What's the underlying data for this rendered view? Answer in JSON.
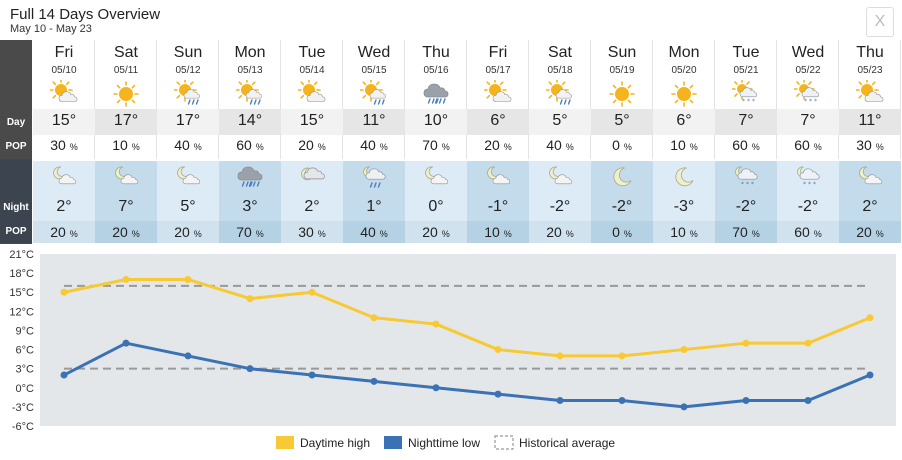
{
  "header": {
    "title": "Full 14 Days Overview",
    "subtitle": "May 10 - May 23",
    "close_label": "X"
  },
  "row_labels": {
    "day": "Day",
    "pop": "POP",
    "night": "Night",
    "pop_night": "POP"
  },
  "pop_unit": "%",
  "days": [
    {
      "day": "Fri",
      "date": "05/10",
      "high": "15°",
      "pop": "30",
      "day_icon": "partly-sunny-icon",
      "low": "2°",
      "npop": "20",
      "night_icon": "partly-cloudy-night-icon"
    },
    {
      "day": "Sat",
      "date": "05/11",
      "high": "17°",
      "pop": "10",
      "day_icon": "sunny-icon",
      "low": "7°",
      "npop": "20",
      "night_icon": "partly-cloudy-night-icon"
    },
    {
      "day": "Sun",
      "date": "05/12",
      "high": "17°",
      "pop": "40",
      "day_icon": "sun-showers-icon",
      "low": "5°",
      "npop": "20",
      "night_icon": "partly-cloudy-night-icon"
    },
    {
      "day": "Mon",
      "date": "05/13",
      "high": "14°",
      "pop": "60",
      "day_icon": "sun-showers-icon",
      "low": "3°",
      "npop": "70",
      "night_icon": "rain-cloud-icon"
    },
    {
      "day": "Tue",
      "date": "05/14",
      "high": "15°",
      "pop": "20",
      "day_icon": "partly-sunny-icon",
      "low": "2°",
      "npop": "30",
      "night_icon": "cloudy-night-icon"
    },
    {
      "day": "Wed",
      "date": "05/15",
      "high": "11°",
      "pop": "40",
      "day_icon": "sun-showers-icon",
      "low": "1°",
      "npop": "40",
      "night_icon": "night-showers-icon"
    },
    {
      "day": "Thu",
      "date": "05/16",
      "high": "10°",
      "pop": "70",
      "day_icon": "rain-cloud-icon",
      "low": "0°",
      "npop": "20",
      "night_icon": "partly-cloudy-night-icon"
    },
    {
      "day": "Fri",
      "date": "05/17",
      "high": "6°",
      "pop": "20",
      "day_icon": "partly-sunny-icon",
      "low": "-1°",
      "npop": "10",
      "night_icon": "partly-cloudy-night-icon"
    },
    {
      "day": "Sat",
      "date": "05/18",
      "high": "5°",
      "pop": "40",
      "day_icon": "sun-showers-icon",
      "low": "-2°",
      "npop": "20",
      "night_icon": "partly-cloudy-night-icon"
    },
    {
      "day": "Sun",
      "date": "05/19",
      "high": "5°",
      "pop": "0",
      "day_icon": "sunny-icon",
      "low": "-2°",
      "npop": "0",
      "night_icon": "moon-icon"
    },
    {
      "day": "Mon",
      "date": "05/20",
      "high": "6°",
      "pop": "10",
      "day_icon": "sunny-icon",
      "low": "-3°",
      "npop": "10",
      "night_icon": "moon-icon"
    },
    {
      "day": "Tue",
      "date": "05/21",
      "high": "7°",
      "pop": "60",
      "day_icon": "snow-showers-icon",
      "low": "-2°",
      "npop": "70",
      "night_icon": "night-snow-icon"
    },
    {
      "day": "Wed",
      "date": "05/22",
      "high": "7°",
      "pop": "60",
      "day_icon": "snow-showers-icon",
      "low": "-2°",
      "npop": "60",
      "night_icon": "night-snow-icon"
    },
    {
      "day": "Thu",
      "date": "05/23",
      "high": "11°",
      "pop": "30",
      "day_icon": "partly-sunny-icon",
      "low": "2°",
      "npop": "20",
      "night_icon": "partly-cloudy-night-icon"
    }
  ],
  "colors": {
    "high": "#f7c934",
    "low": "#3b72b4",
    "avg": "#999999",
    "chart_bg": "#e4e7ea",
    "sun": "#f5b41c"
  },
  "chart_data": {
    "type": "line",
    "categories": [
      "05/10",
      "05/11",
      "05/12",
      "05/13",
      "05/14",
      "05/15",
      "05/16",
      "05/17",
      "05/18",
      "05/19",
      "05/20",
      "05/21",
      "05/22",
      "05/23"
    ],
    "series": [
      {
        "name": "Daytime high",
        "values": [
          15,
          17,
          17,
          14,
          15,
          11,
          10,
          6,
          5,
          5,
          6,
          7,
          7,
          11
        ]
      },
      {
        "name": "Nighttime low",
        "values": [
          2,
          7,
          5,
          3,
          2,
          1,
          0,
          -1,
          -2,
          -2,
          -3,
          -2,
          -2,
          2
        ]
      }
    ],
    "historical_average": {
      "name": "Historical average",
      "high": 16,
      "low": 3
    },
    "yticks": [
      "21°C",
      "18°C",
      "15°C",
      "12°C",
      "9°C",
      "6°C",
      "3°C",
      "0°C",
      "-3°C",
      "-6°C"
    ],
    "ytick_values": [
      21,
      18,
      15,
      12,
      9,
      6,
      3,
      0,
      -3,
      -6
    ],
    "ylim": [
      -6,
      21
    ],
    "legend_position": "bottom-center",
    "grid": false
  }
}
